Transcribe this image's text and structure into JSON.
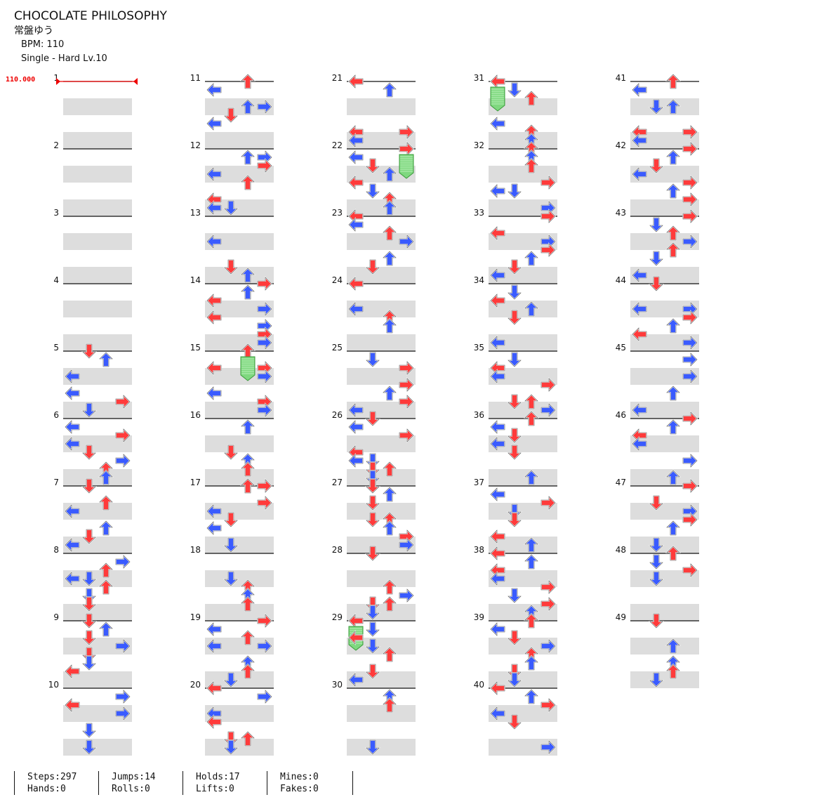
{
  "song": {
    "title": "CHOCOLATE PHILOSOPHY",
    "artist": "常盤ゆう",
    "bpm_label": "BPM: 110",
    "difficulty_label": "Single - Hard  Lv.10"
  },
  "bpm_marker": "110.000",
  "measure_labels": [
    "1",
    "2",
    "3",
    "4",
    "5",
    "6",
    "7",
    "8",
    "9",
    "10",
    "11",
    "12",
    "13",
    "14",
    "15",
    "16",
    "17",
    "18",
    "19",
    "20",
    "21",
    "22",
    "23",
    "24",
    "25",
    "26",
    "27",
    "28",
    "29",
    "30",
    "31",
    "32",
    "33",
    "34",
    "35",
    "36",
    "37",
    "38",
    "39",
    "40",
    "41",
    "42",
    "43",
    "44",
    "45",
    "46",
    "47",
    "48",
    "49"
  ],
  "stats": {
    "steps": "Steps:297",
    "hands": "Hands:0",
    "jumps": "Jumps:14",
    "rolls": "Rolls:0",
    "holds": "Holds:17",
    "lifts": "Lifts:0",
    "mines": "Mines:0",
    "fakes": "Fakes:0"
  },
  "colors": {
    "quarter_note": "#ff3b3b",
    "eighth_note": "#3a5bff",
    "hold_body": "#7fd87f",
    "beat_band": "#dddddd",
    "bpm_marker": "#ee0000"
  },
  "arrow_icons": [
    "left-arrow-icon",
    "down-arrow-icon",
    "up-arrow-icon",
    "right-arrow-icon",
    "hold-note-icon"
  ]
}
